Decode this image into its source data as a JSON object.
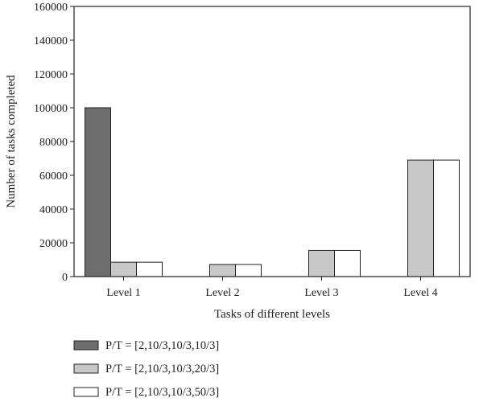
{
  "chart_data": {
    "type": "bar",
    "title": "",
    "xlabel": "Tasks of different levels",
    "ylabel": "Number of tasks completed",
    "ylim": [
      0,
      160000
    ],
    "yticks": [
      0,
      20000,
      40000,
      60000,
      80000,
      100000,
      120000,
      140000,
      160000
    ],
    "categories": [
      "Level 1",
      "Level 2",
      "Level 3",
      "Level 4"
    ],
    "series": [
      {
        "name": "P/T = [2,10/3,10/3,10/3]",
        "color": "#6e6e6e",
        "values": [
          100000,
          0,
          0,
          0
        ]
      },
      {
        "name": "P/T = [2,10/3,10/3,20/3]",
        "color": "#c8c8c8",
        "values": [
          8500,
          7200,
          15500,
          69000
        ]
      },
      {
        "name": "P/T = [2,10/3,10/3,50/3]",
        "color": "#ffffff",
        "values": [
          8500,
          7200,
          15500,
          69000
        ]
      }
    ],
    "grid": false,
    "legend_position": "bottom-left"
  }
}
